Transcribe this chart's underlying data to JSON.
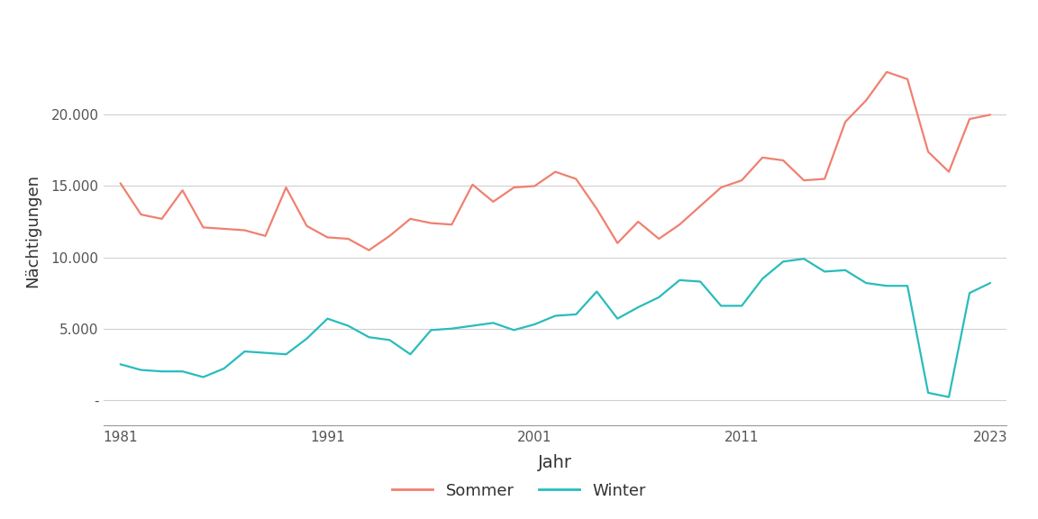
{
  "years": [
    1981,
    1982,
    1983,
    1984,
    1985,
    1986,
    1987,
    1988,
    1989,
    1990,
    1991,
    1992,
    1993,
    1994,
    1995,
    1996,
    1997,
    1998,
    1999,
    2000,
    2001,
    2002,
    2003,
    2004,
    2005,
    2006,
    2007,
    2008,
    2009,
    2010,
    2011,
    2012,
    2013,
    2014,
    2015,
    2016,
    2017,
    2018,
    2019,
    2020,
    2021,
    2022,
    2023
  ],
  "sommer": [
    15200,
    13000,
    12700,
    14700,
    12100,
    12000,
    11900,
    11500,
    14900,
    12200,
    11400,
    11300,
    10500,
    11500,
    12700,
    12400,
    12300,
    15100,
    13900,
    14900,
    15000,
    16000,
    15500,
    13400,
    11000,
    12500,
    11300,
    12300,
    13600,
    14900,
    15400,
    17000,
    16800,
    15400,
    15500,
    19500,
    21000,
    23000,
    22500,
    17400,
    16000,
    19700,
    20000
  ],
  "winter": [
    2500,
    2100,
    2000,
    2000,
    1600,
    2200,
    3400,
    3300,
    3200,
    4300,
    5700,
    5200,
    4400,
    4200,
    3200,
    4900,
    5000,
    5200,
    5400,
    4900,
    5300,
    5900,
    6000,
    7600,
    5700,
    6500,
    7200,
    8400,
    8300,
    6600,
    6600,
    8500,
    9700,
    9900,
    9000,
    9100,
    8200,
    8000,
    8000,
    500,
    200,
    7500,
    8200
  ],
  "sommer_color": "#F08070",
  "winter_color": "#29BCBC",
  "ylabel": "Nächtigungen",
  "xlabel": "Jahr",
  "yticks": [
    0,
    5000,
    10000,
    15000,
    20000
  ],
  "ytick_labels": [
    "-",
    "5.000",
    "10.000",
    "15.000",
    "20.000"
  ],
  "xticks": [
    1981,
    1991,
    2001,
    2011,
    2023
  ],
  "ylim": [
    -1800,
    25500
  ],
  "xlim": [
    1980.2,
    2023.8
  ],
  "bg_color": "#ffffff",
  "grid_color": "#d0d0d0",
  "legend_labels": [
    "Sommer",
    "Winter"
  ],
  "line_width": 1.6,
  "font_family": "DejaVu Sans"
}
